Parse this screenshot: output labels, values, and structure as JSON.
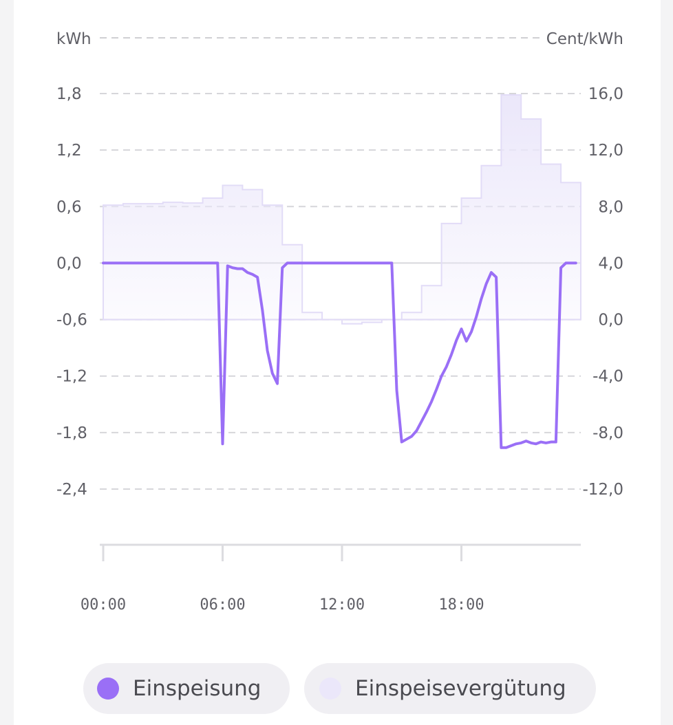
{
  "chart_data": {
    "type": "line",
    "left_axis_label": "kWh",
    "right_axis_label": "Cent/kWh",
    "left_ticks": [
      "1,8",
      "1,2",
      "0,6",
      "0,0",
      "-0,6",
      "-1,2",
      "-1,8",
      "-2,4"
    ],
    "left_tick_values": [
      1.8,
      1.2,
      0.6,
      0.0,
      -0.6,
      -1.2,
      -1.8,
      -2.4
    ],
    "right_ticks": [
      "16,0",
      "12,0",
      "8,0",
      "4,0",
      "0,0",
      "-4,0",
      "-8,0",
      "-12,0"
    ],
    "right_tick_values": [
      16,
      12,
      8,
      4,
      0,
      -4,
      -8,
      -12
    ],
    "x_ticks": [
      "00:00",
      "06:00",
      "12:00",
      "18:00"
    ],
    "x_tick_hours": [
      0,
      6,
      12,
      18
    ],
    "ylim_left": [
      -2.4,
      1.8
    ],
    "ylim_right": [
      -12,
      16
    ],
    "grid": "dashed horizontal",
    "legend_position": "bottom",
    "series": [
      {
        "name": "Einspeisung",
        "axis": "left",
        "color": "#9a6ff6",
        "x_hours": [
          0,
          5.75,
          6.0,
          6.25,
          6.5,
          6.75,
          7.0,
          7.25,
          7.5,
          7.75,
          8.0,
          8.25,
          8.5,
          8.75,
          9.0,
          9.25,
          9.5,
          9.75,
          10.0,
          10.25,
          14.5,
          14.75,
          15.0,
          15.25,
          15.5,
          15.75,
          16.0,
          16.25,
          16.5,
          16.75,
          17.0,
          17.25,
          17.5,
          17.75,
          18.0,
          18.25,
          18.5,
          18.75,
          19.0,
          19.25,
          19.5,
          19.75,
          20.0,
          20.25,
          20.5,
          20.75,
          21.0,
          21.25,
          21.5,
          21.75,
          22.0,
          22.25,
          22.5,
          22.75,
          23.0,
          23.25,
          23.5,
          23.75
        ],
        "values": [
          0.0,
          0.0,
          -1.92,
          -0.03,
          -0.05,
          -0.06,
          -0.06,
          -0.1,
          -0.12,
          -0.15,
          -0.5,
          -0.93,
          -1.17,
          -1.28,
          -0.05,
          0.0,
          0.0,
          0.0,
          0.0,
          0.0,
          0.0,
          -1.35,
          -1.9,
          -1.87,
          -1.84,
          -1.78,
          -1.68,
          -1.58,
          -1.47,
          -1.34,
          -1.2,
          -1.1,
          -0.97,
          -0.82,
          -0.7,
          -0.83,
          -0.73,
          -0.57,
          -0.38,
          -0.22,
          -0.1,
          -0.15,
          -1.96,
          -1.96,
          -1.94,
          -1.92,
          -1.91,
          -1.89,
          -1.91,
          -1.92,
          -1.9,
          -1.91,
          -1.9,
          -1.9,
          -0.05,
          0.0,
          0.0,
          0.0
        ]
      },
      {
        "name": "Einspeisevergütung",
        "axis": "right",
        "color": "#ebe7fa",
        "x_hours": [
          0,
          1,
          2,
          3,
          4,
          5,
          6,
          7,
          8,
          9,
          10,
          11,
          12,
          13,
          14,
          15,
          16,
          17,
          18,
          19,
          20,
          21,
          22,
          23
        ],
        "values": [
          8.1,
          8.2,
          8.2,
          8.3,
          8.25,
          8.6,
          9.5,
          9.2,
          8.1,
          5.3,
          0.5,
          0.0,
          -0.3,
          -0.2,
          0.0,
          0.5,
          2.4,
          6.8,
          8.6,
          10.9,
          15.9,
          14.2,
          11.0,
          9.7
        ]
      }
    ]
  }
}
